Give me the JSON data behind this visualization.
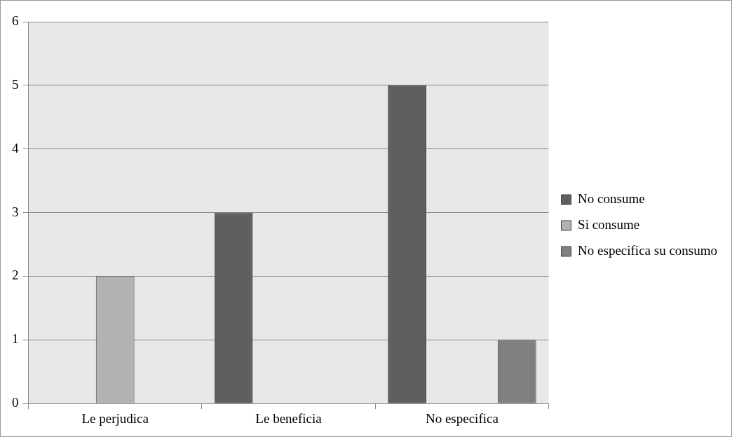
{
  "chart_data": {
    "type": "bar",
    "categories": [
      "Le perjudica",
      "Le beneficia",
      "No especifica"
    ],
    "series": [
      {
        "name": "No consume",
        "color": "#5f5f5f",
        "values": [
          0,
          3,
          5
        ]
      },
      {
        "name": "Si consume",
        "color": "#b2b2b2",
        "values": [
          2,
          0,
          0
        ]
      },
      {
        "name": "No especifica su consumo",
        "color": "#808080",
        "values": [
          0,
          0,
          1
        ]
      }
    ],
    "ylim": [
      0,
      6
    ],
    "yticks": [
      0,
      1,
      2,
      3,
      4,
      5,
      6
    ],
    "grid": "y",
    "legend": "right"
  }
}
